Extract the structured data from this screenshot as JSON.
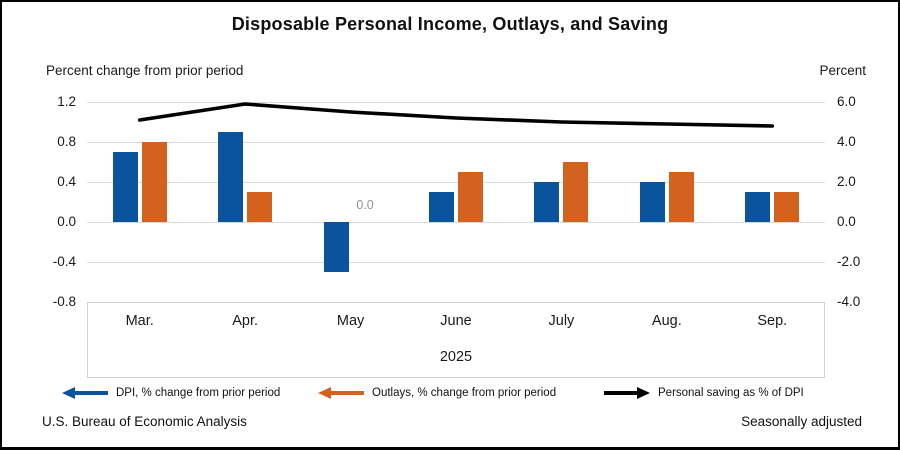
{
  "title": "Disposable Personal Income, Outlays, and Saving",
  "left_axis_caption": "Percent change from prior period",
  "right_axis_caption": "Percent",
  "footer": {
    "source": "U.S. Bureau of Economic Analysis",
    "note": "Seasonally adjusted"
  },
  "legend": [
    {
      "label": "DPI, % change from prior period",
      "color": "#0a539d",
      "arrow": "left"
    },
    {
      "label": "Outlays, % change from prior period",
      "color": "#d4611e",
      "arrow": "left"
    },
    {
      "label": "Personal saving as % of DPI",
      "color": "#000000",
      "arrow": "right"
    }
  ],
  "colors": {
    "dpi_bar": "#0a539d",
    "outlays_bar": "#d4611e",
    "saving_line": "#000000",
    "gridline": "#d9d9d9",
    "zero_label": "#909090"
  },
  "chart_data": {
    "type": "bar",
    "subtype": "grouped bars with overlay line",
    "categories": [
      "Mar.",
      "Apr.",
      "May",
      "June",
      "July",
      "Aug.",
      "Sep."
    ],
    "x_group_label": "2025",
    "series": [
      {
        "name": "DPI, % change from prior period",
        "type": "bar",
        "axis": "left",
        "color": "#0a539d",
        "values": [
          0.7,
          0.9,
          -0.5,
          0.3,
          0.4,
          0.4,
          0.3
        ]
      },
      {
        "name": "Outlays, % change from prior period",
        "type": "bar",
        "axis": "left",
        "color": "#d4611e",
        "values": [
          0.8,
          0.3,
          0.0,
          0.5,
          0.6,
          0.5,
          0.3
        ]
      },
      {
        "name": "Personal saving as % of DPI",
        "type": "line",
        "axis": "right",
        "color": "#000000",
        "values": [
          5.1,
          5.9,
          5.5,
          5.2,
          5.0,
          4.9,
          4.8
        ]
      }
    ],
    "left_axis": {
      "label": "Percent change from prior period",
      "ticks": [
        "1.2",
        "0.8",
        "0.4",
        "0.0",
        "-0.4",
        "-0.8"
      ],
      "min": -0.8,
      "max": 1.2
    },
    "right_axis": {
      "label": "Percent",
      "ticks": [
        "6.0",
        "4.0",
        "2.0",
        "0.0",
        "-2.0",
        "-4.0"
      ],
      "min": -4.0,
      "max": 6.0
    },
    "annotations": [
      {
        "text": "0.0",
        "category": "May",
        "series": "Outlays, % change from prior period",
        "color": "#909090"
      }
    ],
    "grid": true,
    "legend_position": "bottom"
  }
}
